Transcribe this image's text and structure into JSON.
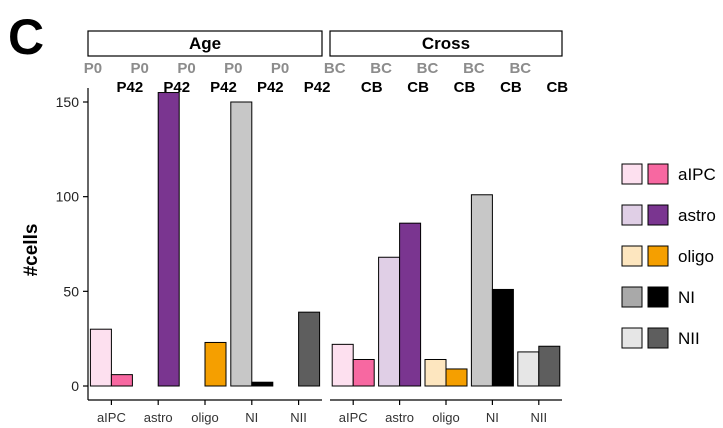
{
  "panel_letter": "C",
  "chart_data": [
    {
      "type": "bar",
      "panel": "Age",
      "categories": [
        "aIPC",
        "astro",
        "oligo",
        "NI",
        "NII"
      ],
      "top_labels": [
        "P0",
        "P42"
      ],
      "series": [
        {
          "name": "P0",
          "values": [
            30,
            0,
            0,
            150,
            0
          ]
        },
        {
          "name": "P42",
          "values": [
            6,
            155,
            23,
            2,
            39
          ]
        }
      ],
      "ylabel": "#cells",
      "ylim": [
        0,
        158
      ],
      "yticks": [
        0,
        50,
        100,
        150
      ]
    },
    {
      "type": "bar",
      "panel": "Cross",
      "categories": [
        "aIPC",
        "astro",
        "oligo",
        "NI",
        "NII"
      ],
      "top_labels": [
        "BC",
        "CB"
      ],
      "series": [
        {
          "name": "BC",
          "values": [
            22,
            68,
            14,
            101,
            18
          ]
        },
        {
          "name": "CB",
          "values": [
            14,
            86,
            9,
            51,
            21
          ]
        }
      ],
      "ylim": [
        0,
        158
      ],
      "yticks": [
        0,
        50,
        100,
        150
      ]
    }
  ],
  "colors": {
    "aIPC": [
      "#fde0ef",
      "#f768a1"
    ],
    "astro": [
      "#e0cfe6",
      "#7a3590"
    ],
    "oligo": [
      "#fde6bf",
      "#f59f00"
    ],
    "NI": [
      "#c7c7c7",
      "#000000"
    ],
    "NII": [
      "#e6e6e6",
      "#5e5e5e"
    ]
  },
  "legend": {
    "items": [
      {
        "label": "aIPC",
        "colors": [
          "#fde0ef",
          "#f768a1"
        ]
      },
      {
        "label": "astro",
        "colors": [
          "#e0cfe6",
          "#7a3590"
        ]
      },
      {
        "label": "oligo",
        "colors": [
          "#fde6bf",
          "#f59f00"
        ]
      },
      {
        "label": "NI",
        "colors": [
          "#a9a9a9",
          "#000000"
        ]
      },
      {
        "label": "NII",
        "colors": [
          "#e6e6e6",
          "#5e5e5e"
        ]
      }
    ]
  }
}
